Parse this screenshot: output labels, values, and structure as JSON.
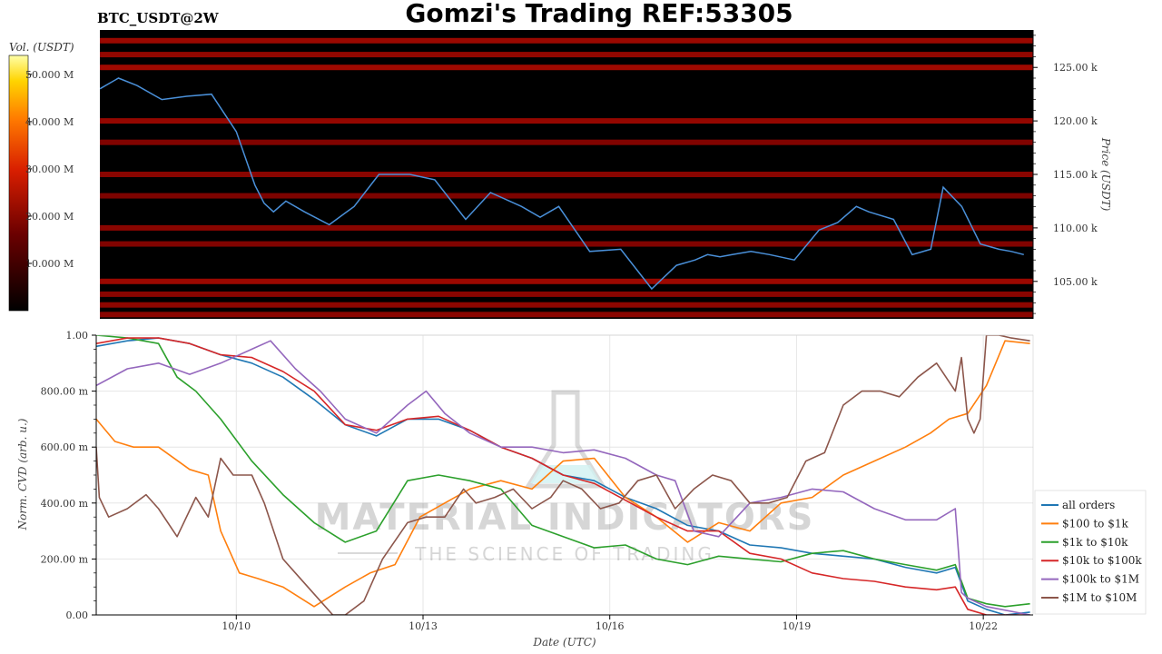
{
  "header": {
    "title": "Gomzi's Trading REF:53305",
    "pair": "BTC_USDT@2W"
  },
  "colorbar": {
    "label": "Vol. (USDT)",
    "ticks": [
      "10.000 M",
      "20.000 M",
      "30.000 M",
      "40.000 M",
      "50.000 M"
    ],
    "tick_values": [
      10,
      20,
      30,
      40,
      50
    ],
    "range": [
      0,
      54
    ]
  },
  "watermark": {
    "line1": "MATERIAL INDICATORS",
    "line2": "THE SCIENCE OF TRADING"
  },
  "chart_data": [
    {
      "type": "heatmap",
      "ylabel": "Price (USDT)",
      "y_ticks": [
        "105.00 k",
        "110.00 k",
        "115.00 k",
        "120.00 k",
        "125.00 k"
      ],
      "y_tick_values": [
        105,
        110,
        115,
        120,
        125
      ],
      "ylim": [
        101.5,
        128.5
      ],
      "x_range_dates": [
        "10/07 18:00",
        "10/22 12:00"
      ],
      "price_series": {
        "name": "price",
        "color": "#4a90d9",
        "x_days": [
          0,
          0.3,
          0.6,
          1.0,
          1.4,
          1.8,
          2.2,
          2.5,
          2.65,
          2.8,
          3.0,
          3.3,
          3.7,
          4.1,
          4.5,
          5.0,
          5.4,
          5.9,
          6.3,
          6.8,
          7.1,
          7.4,
          7.9,
          8.4,
          8.9,
          9.3,
          9.6,
          9.8,
          10.0,
          10.2,
          10.5,
          10.8,
          11.2,
          11.6,
          11.9,
          12.2,
          12.4,
          12.8,
          13.1,
          13.4,
          13.6,
          13.9,
          14.2,
          14.5,
          14.7,
          14.9
        ],
        "values": [
          123.0,
          124.0,
          123.3,
          122.0,
          122.3,
          122.5,
          119.0,
          114.0,
          112.3,
          111.5,
          112.5,
          111.5,
          110.3,
          112.0,
          115.0,
          115.0,
          114.5,
          110.8,
          113.3,
          112.0,
          111.0,
          112.0,
          107.8,
          108.0,
          104.3,
          106.5,
          107.0,
          107.5,
          107.3,
          107.5,
          107.8,
          107.5,
          107.0,
          109.8,
          110.5,
          112.0,
          111.5,
          110.8,
          107.5,
          108.0,
          113.8,
          112.0,
          108.5,
          108.0,
          107.8,
          107.5
        ]
      },
      "resting_levels": [
        {
          "price": 127.5,
          "intensity": 0.45
        },
        {
          "price": 126.2,
          "intensity": 0.38
        },
        {
          "price": 125.0,
          "intensity": 0.5
        },
        {
          "price": 120.0,
          "intensity": 0.4
        },
        {
          "price": 118.0,
          "intensity": 0.22
        },
        {
          "price": 115.0,
          "intensity": 0.3
        },
        {
          "price": 113.0,
          "intensity": 0.2
        },
        {
          "price": 110.0,
          "intensity": 0.3
        },
        {
          "price": 108.5,
          "intensity": 0.22
        },
        {
          "price": 105.0,
          "intensity": 0.45
        },
        {
          "price": 103.8,
          "intensity": 0.3
        },
        {
          "price": 102.8,
          "intensity": 0.35
        },
        {
          "price": 101.9,
          "intensity": 0.3
        }
      ]
    },
    {
      "type": "line",
      "xlabel": "Date (UTC)",
      "ylabel": "Norm. CVD (arb. u.)",
      "x_ticks": [
        "10/10",
        "10/13",
        "10/16",
        "10/19",
        "10/22"
      ],
      "x_tick_days": [
        2.25,
        5.25,
        8.25,
        11.25,
        14.25
      ],
      "xlim_days": [
        0,
        15.05
      ],
      "y_ticks": [
        "0.00",
        "200.00 m",
        "400.00 m",
        "600.00 m",
        "800.00 m",
        "1.00"
      ],
      "y_tick_values": [
        0,
        0.2,
        0.4,
        0.6,
        0.8,
        1.0
      ],
      "ylim": [
        0,
        1.0
      ],
      "legend_position": "right",
      "series": [
        {
          "name": "all orders",
          "color": "#1f77b4",
          "x": [
            0,
            0.5,
            1.0,
            1.5,
            2.0,
            2.5,
            3.0,
            3.5,
            4.0,
            4.5,
            5.0,
            5.5,
            6.0,
            6.5,
            7.0,
            7.5,
            8.0,
            8.5,
            9.0,
            9.5,
            10.0,
            10.5,
            11.0,
            11.5,
            12.0,
            12.5,
            13.0,
            13.5,
            13.8,
            14.0,
            14.3,
            14.6,
            15.0
          ],
          "values": [
            0.96,
            0.98,
            0.99,
            0.97,
            0.93,
            0.9,
            0.85,
            0.77,
            0.68,
            0.64,
            0.7,
            0.7,
            0.66,
            0.6,
            0.56,
            0.5,
            0.48,
            0.42,
            0.38,
            0.32,
            0.3,
            0.25,
            0.24,
            0.22,
            0.21,
            0.2,
            0.17,
            0.15,
            0.17,
            0.05,
            0.02,
            0.0,
            0.01
          ]
        },
        {
          "name": "$100 to $1k",
          "color": "#ff7f0e",
          "x": [
            0,
            0.3,
            0.6,
            1.0,
            1.5,
            1.8,
            2.0,
            2.3,
            2.6,
            3.0,
            3.5,
            4.0,
            4.4,
            4.8,
            5.2,
            5.6,
            6.0,
            6.5,
            7.0,
            7.5,
            8.0,
            8.5,
            9.0,
            9.5,
            10.0,
            10.5,
            11.0,
            11.5,
            12.0,
            12.5,
            13.0,
            13.4,
            13.7,
            14.0,
            14.3,
            14.6,
            15.0
          ],
          "values": [
            0.7,
            0.62,
            0.6,
            0.6,
            0.52,
            0.5,
            0.3,
            0.15,
            0.13,
            0.1,
            0.03,
            0.1,
            0.15,
            0.18,
            0.35,
            0.4,
            0.45,
            0.48,
            0.45,
            0.55,
            0.56,
            0.42,
            0.35,
            0.26,
            0.33,
            0.3,
            0.4,
            0.42,
            0.5,
            0.55,
            0.6,
            0.65,
            0.7,
            0.72,
            0.82,
            0.98,
            0.97
          ]
        },
        {
          "name": "$1k to $10k",
          "color": "#2ca02c",
          "x": [
            0,
            0.5,
            1.0,
            1.3,
            1.6,
            2.0,
            2.5,
            3.0,
            3.5,
            4.0,
            4.5,
            5.0,
            5.5,
            6.0,
            6.5,
            7.0,
            7.5,
            8.0,
            8.5,
            9.0,
            9.5,
            10.0,
            10.5,
            11.0,
            11.5,
            12.0,
            12.5,
            13.0,
            13.5,
            13.8,
            14.0,
            14.3,
            14.6,
            15.0
          ],
          "values": [
            1.0,
            0.99,
            0.97,
            0.85,
            0.8,
            0.7,
            0.55,
            0.43,
            0.33,
            0.26,
            0.3,
            0.48,
            0.5,
            0.48,
            0.45,
            0.32,
            0.28,
            0.24,
            0.25,
            0.2,
            0.18,
            0.21,
            0.2,
            0.19,
            0.22,
            0.23,
            0.2,
            0.18,
            0.16,
            0.18,
            0.06,
            0.04,
            0.03,
            0.04
          ]
        },
        {
          "name": "$10k to $100k",
          "color": "#d62728",
          "x": [
            0,
            0.5,
            1.0,
            1.5,
            2.0,
            2.5,
            3.0,
            3.5,
            4.0,
            4.5,
            5.0,
            5.5,
            6.0,
            6.5,
            7.0,
            7.5,
            8.0,
            8.5,
            9.0,
            9.5,
            10.0,
            10.5,
            11.0,
            11.5,
            12.0,
            12.5,
            13.0,
            13.5,
            13.8,
            14.0,
            14.3,
            15.0
          ],
          "values": [
            0.97,
            0.99,
            0.99,
            0.97,
            0.93,
            0.92,
            0.87,
            0.8,
            0.68,
            0.66,
            0.7,
            0.71,
            0.66,
            0.6,
            0.56,
            0.5,
            0.47,
            0.41,
            0.35,
            0.3,
            0.3,
            0.22,
            0.2,
            0.15,
            0.13,
            0.12,
            0.1,
            0.09,
            0.1,
            0.02,
            0.0,
            0.0
          ]
        },
        {
          "name": "$100k to $1M",
          "color": "#9467bd",
          "x": [
            0,
            0.5,
            1.0,
            1.5,
            2.0,
            2.5,
            2.8,
            3.2,
            3.6,
            4.0,
            4.5,
            5.0,
            5.3,
            5.6,
            6.0,
            6.5,
            7.0,
            7.5,
            8.0,
            8.5,
            9.0,
            9.3,
            9.6,
            10.0,
            10.5,
            11.0,
            11.5,
            12.0,
            12.5,
            13.0,
            13.5,
            13.8,
            13.9,
            14.0,
            14.3,
            15.0
          ],
          "values": [
            0.82,
            0.88,
            0.9,
            0.86,
            0.9,
            0.95,
            0.98,
            0.88,
            0.8,
            0.7,
            0.65,
            0.75,
            0.8,
            0.72,
            0.65,
            0.6,
            0.6,
            0.58,
            0.59,
            0.56,
            0.5,
            0.48,
            0.3,
            0.28,
            0.4,
            0.42,
            0.45,
            0.44,
            0.38,
            0.34,
            0.34,
            0.38,
            0.08,
            0.06,
            0.03,
            0.0
          ]
        },
        {
          "name": "$1M to $10M",
          "color": "#8c564b",
          "x": [
            0,
            0.05,
            0.2,
            0.5,
            0.8,
            1.0,
            1.3,
            1.6,
            1.8,
            2.0,
            2.2,
            2.5,
            2.7,
            3.0,
            3.2,
            3.4,
            3.8,
            4.0,
            4.3,
            4.6,
            5.0,
            5.3,
            5.6,
            5.9,
            6.1,
            6.4,
            6.7,
            7.0,
            7.3,
            7.5,
            7.8,
            8.1,
            8.4,
            8.7,
            9.0,
            9.3,
            9.6,
            9.9,
            10.2,
            10.5,
            10.8,
            11.1,
            11.4,
            11.7,
            12.0,
            12.3,
            12.6,
            12.9,
            13.2,
            13.5,
            13.8,
            13.9,
            14.0,
            14.1,
            14.2,
            14.3,
            14.5,
            14.7,
            15.0
          ],
          "values": [
            0.6,
            0.42,
            0.35,
            0.38,
            0.43,
            0.38,
            0.28,
            0.42,
            0.35,
            0.56,
            0.5,
            0.5,
            0.4,
            0.2,
            0.15,
            0.1,
            0.0,
            0.0,
            0.05,
            0.2,
            0.33,
            0.35,
            0.35,
            0.45,
            0.4,
            0.42,
            0.45,
            0.38,
            0.42,
            0.48,
            0.45,
            0.38,
            0.4,
            0.48,
            0.5,
            0.38,
            0.45,
            0.5,
            0.48,
            0.4,
            0.4,
            0.42,
            0.55,
            0.58,
            0.75,
            0.8,
            0.8,
            0.78,
            0.85,
            0.9,
            0.8,
            0.92,
            0.7,
            0.65,
            0.7,
            1.0,
            1.0,
            0.99,
            0.98
          ]
        }
      ]
    }
  ]
}
